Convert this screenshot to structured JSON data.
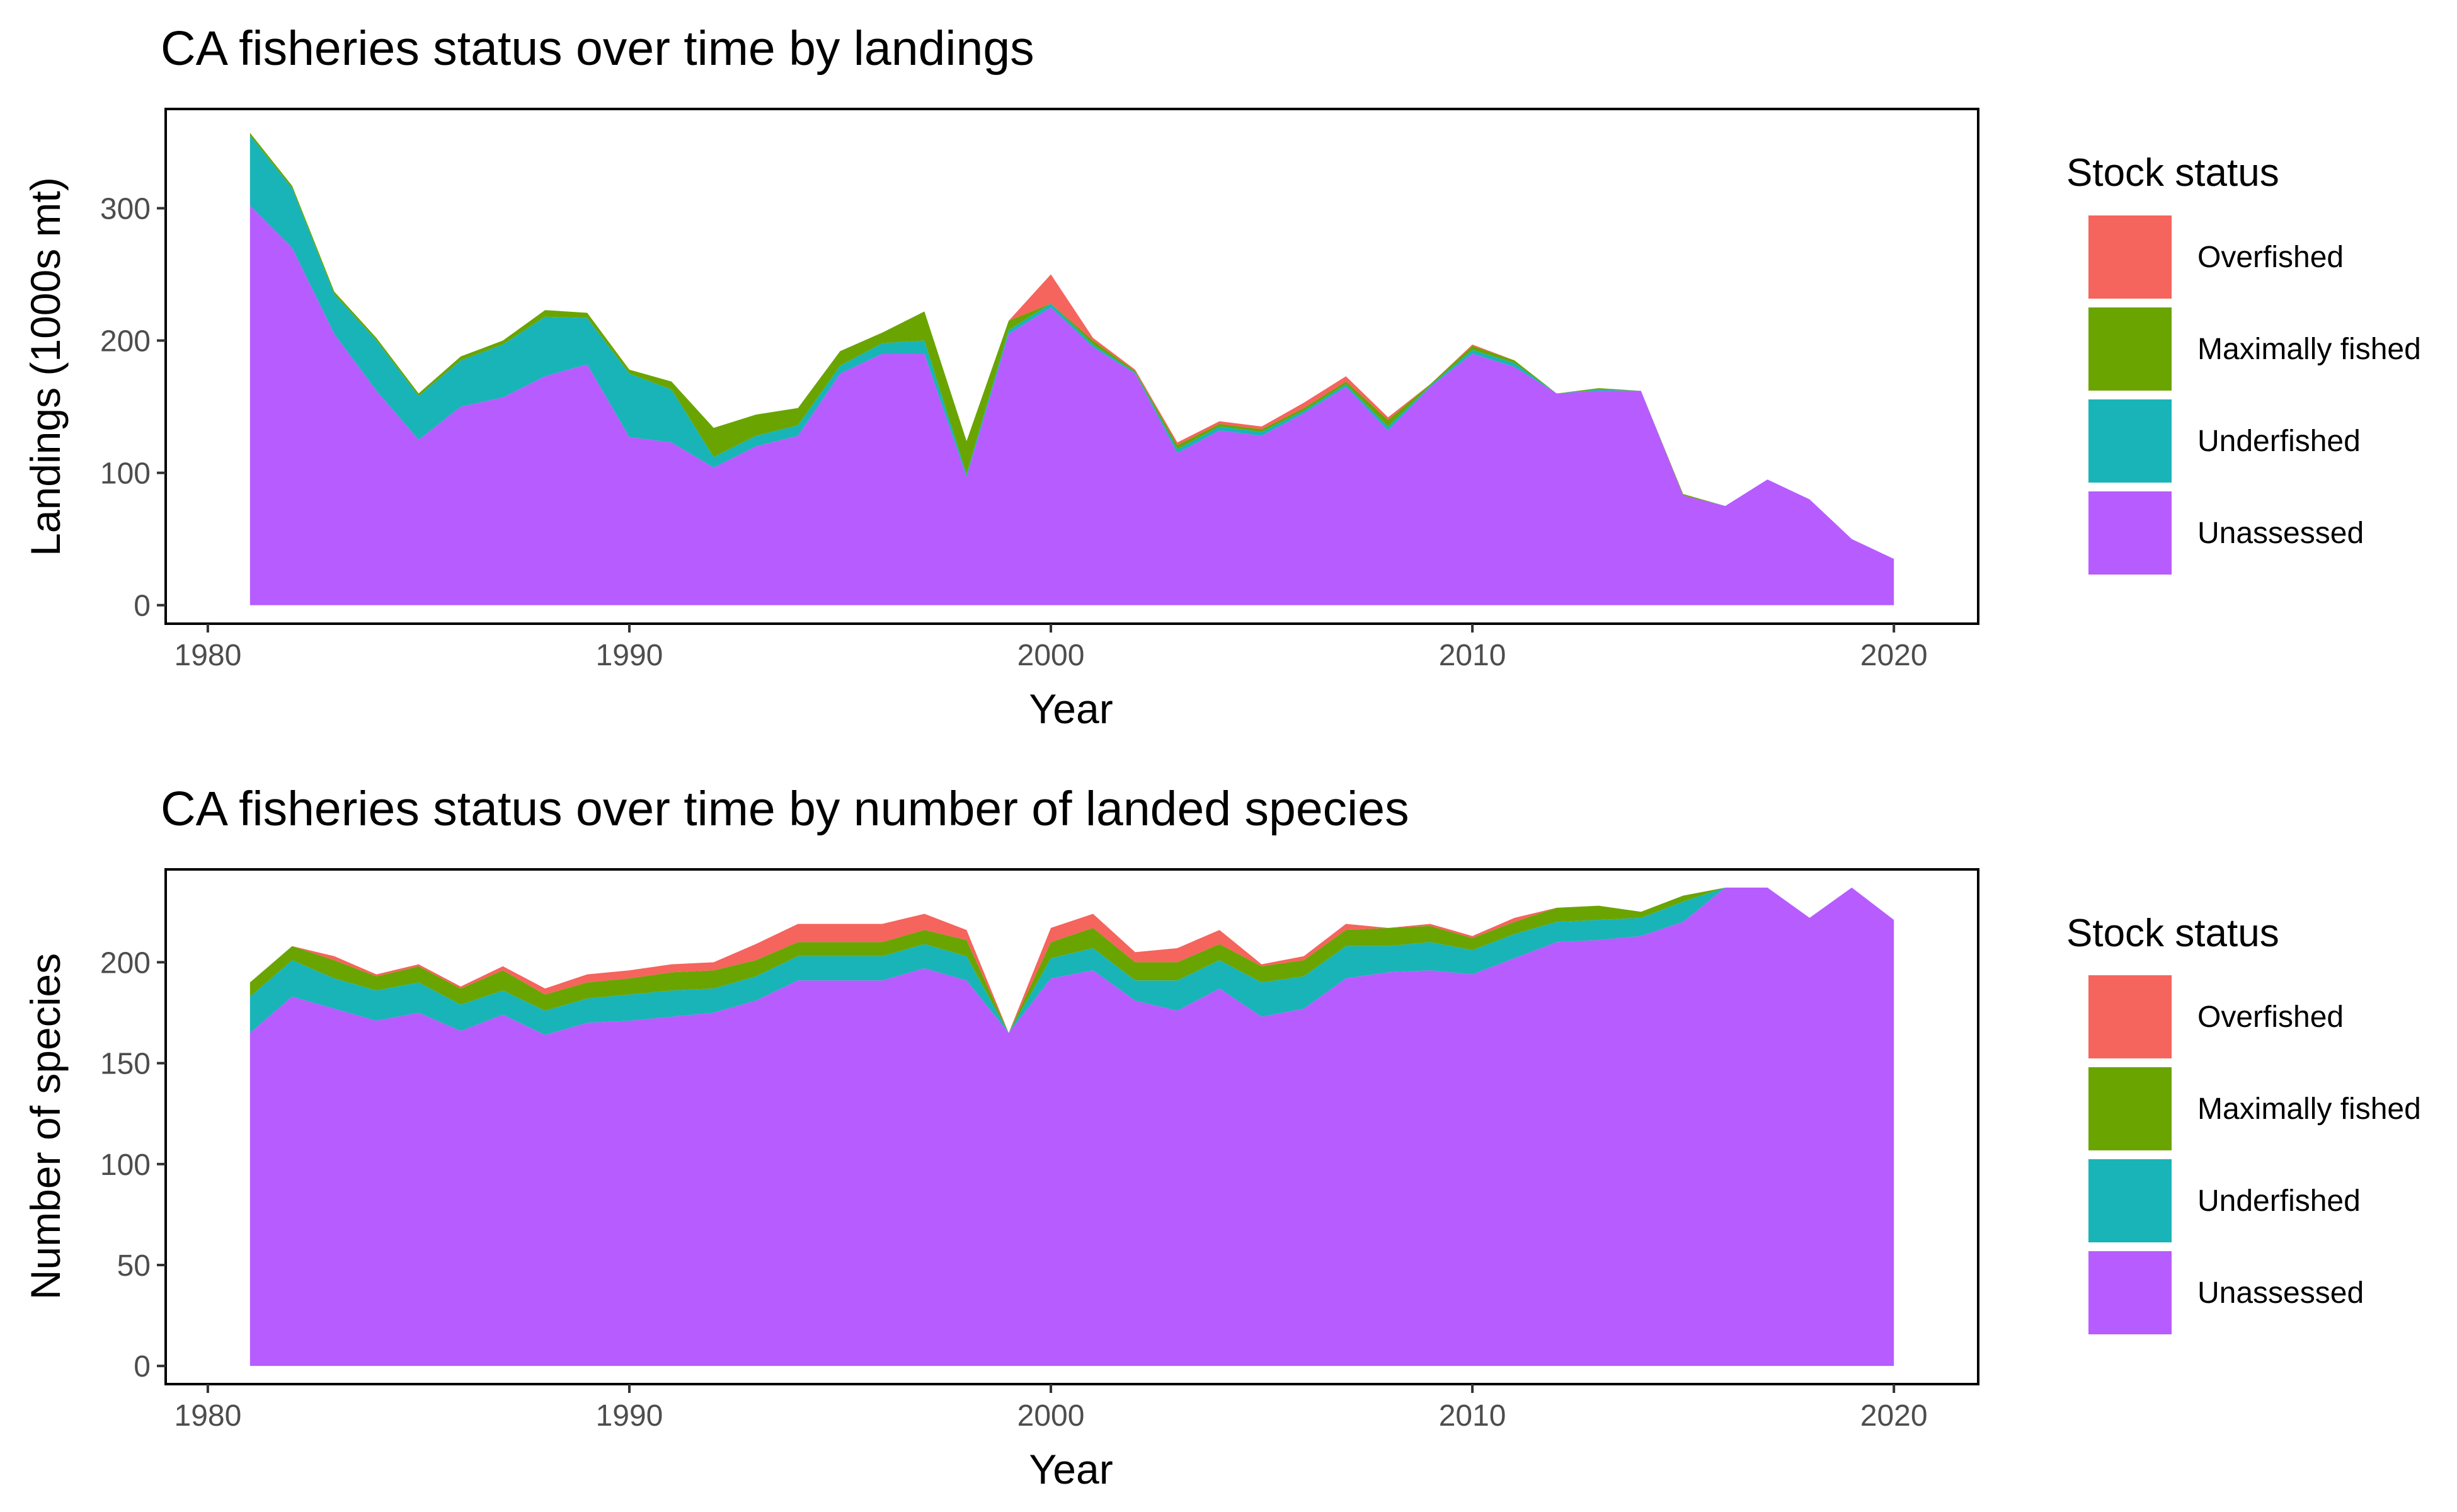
{
  "chart_data": [
    {
      "type": "area",
      "stacked": true,
      "title": "CA fisheries status over time by landings",
      "xlabel": "Year",
      "ylabel": "Landings (1000s mt)",
      "xlim": [
        1979,
        2022
      ],
      "ylim": [
        -14,
        375
      ],
      "xticks": [
        1980,
        1990,
        2000,
        2010,
        2020
      ],
      "yticks": [
        0,
        100,
        200,
        300
      ],
      "grid": false,
      "legend": {
        "title": "Stock status",
        "position": "right"
      },
      "x": [
        1981,
        1982,
        1983,
        1984,
        1985,
        1986,
        1987,
        1988,
        1989,
        1990,
        1991,
        1992,
        1993,
        1994,
        1995,
        1996,
        1997,
        1998,
        1999,
        2000,
        2001,
        2002,
        2003,
        2004,
        2005,
        2006,
        2007,
        2008,
        2009,
        2010,
        2011,
        2012,
        2013,
        2014,
        2015,
        2016,
        2017,
        2018,
        2019,
        2020
      ],
      "series": [
        {
          "name": "Unassessed",
          "color": "#b75cff",
          "values": [
            302,
            270,
            205,
            162,
            125,
            150,
            157,
            173,
            182,
            127,
            123,
            104,
            120,
            128,
            175,
            190,
            190,
            97,
            205,
            225,
            195,
            175,
            115,
            132,
            128,
            145,
            165,
            132,
            165,
            190,
            180,
            160,
            162,
            162,
            83,
            75,
            95,
            80,
            50,
            35
          ]
        },
        {
          "name": "Underfished",
          "color": "#19b4b7",
          "values": [
            53,
            45,
            30,
            38,
            33,
            35,
            40,
            45,
            35,
            48,
            40,
            8,
            8,
            8,
            6,
            8,
            10,
            2,
            3,
            3,
            2,
            1,
            3,
            3,
            3,
            2,
            2,
            3,
            1,
            3,
            3,
            0,
            1,
            0,
            0,
            0,
            0,
            0,
            0,
            0
          ]
        },
        {
          "name": "Maximally fished",
          "color": "#6aa400",
          "values": [
            2,
            2,
            2,
            2,
            2,
            3,
            3,
            5,
            4,
            3,
            6,
            22,
            16,
            13,
            11,
            8,
            22,
            25,
            7,
            0,
            3,
            1,
            3,
            2,
            2,
            2,
            2,
            5,
            1,
            3,
            2,
            0,
            1,
            0,
            1,
            0,
            0,
            0,
            0,
            0
          ]
        },
        {
          "name": "Overfished",
          "color": "#f5645d",
          "values": [
            0,
            0,
            0,
            0,
            0,
            0,
            0,
            0,
            0,
            0,
            0,
            0,
            0,
            0,
            0,
            0,
            0,
            0,
            0,
            22,
            2,
            1,
            2,
            2,
            2,
            4,
            4,
            2,
            0,
            1,
            0,
            0,
            0,
            0,
            0,
            0,
            0,
            0,
            0,
            0
          ]
        }
      ]
    },
    {
      "type": "area",
      "stacked": true,
      "title": "CA fisheries status over time by number of landed species",
      "xlabel": "Year",
      "ylabel": "Number of species",
      "xlim": [
        1979,
        2022
      ],
      "ylim": [
        -9,
        246
      ],
      "xticks": [
        1980,
        1990,
        2000,
        2010,
        2020
      ],
      "yticks": [
        0,
        50,
        100,
        150,
        200
      ],
      "grid": false,
      "legend": {
        "title": "Stock status",
        "position": "right"
      },
      "x": [
        1981,
        1982,
        1983,
        1984,
        1985,
        1986,
        1987,
        1988,
        1989,
        1990,
        1991,
        1992,
        1993,
        1994,
        1995,
        1996,
        1997,
        1998,
        1999,
        2000,
        2001,
        2002,
        2003,
        2004,
        2005,
        2006,
        2007,
        2008,
        2009,
        2010,
        2011,
        2012,
        2013,
        2014,
        2015,
        2016,
        2017,
        2018,
        2019,
        2020
      ],
      "series": [
        {
          "name": "Unassessed",
          "color": "#b75cff",
          "values": [
            165,
            183,
            177,
            171,
            175,
            166,
            174,
            164,
            170,
            171,
            173,
            175,
            181,
            191,
            191,
            191,
            197,
            191,
            165,
            192,
            196,
            181,
            176,
            187,
            173,
            177,
            192,
            195,
            196,
            194,
            202,
            210,
            211,
            213,
            220,
            237,
            237,
            222,
            237,
            221
          ]
        },
        {
          "name": "Underfished",
          "color": "#19b4b7",
          "values": [
            18,
            18,
            15,
            15,
            15,
            13,
            12,
            12,
            12,
            13,
            13,
            12,
            12,
            12,
            12,
            12,
            12,
            12,
            0,
            10,
            11,
            10,
            15,
            14,
            17,
            16,
            16,
            13,
            14,
            12,
            12,
            10,
            10,
            9,
            10,
            0,
            0,
            0,
            0,
            0
          ]
        },
        {
          "name": "Maximally fished",
          "color": "#6aa400",
          "values": [
            7,
            7,
            9,
            7,
            8,
            8,
            10,
            8,
            8,
            8,
            9,
            9,
            8,
            7,
            7,
            7,
            7,
            8,
            0,
            8,
            10,
            9,
            9,
            8,
            8,
            8,
            8,
            9,
            8,
            6,
            6,
            7,
            7,
            3,
            3,
            0,
            0,
            0,
            0,
            0
          ]
        },
        {
          "name": "Overfished",
          "color": "#f5645d",
          "values": [
            0,
            0,
            2,
            1,
            1,
            1,
            2,
            3,
            4,
            4,
            4,
            4,
            8,
            9,
            9,
            9,
            8,
            5,
            0,
            7,
            7,
            5,
            7,
            7,
            1,
            2,
            3,
            0,
            1,
            1,
            2,
            0,
            0,
            0,
            0,
            0,
            0,
            0,
            0,
            0
          ]
        }
      ]
    }
  ]
}
